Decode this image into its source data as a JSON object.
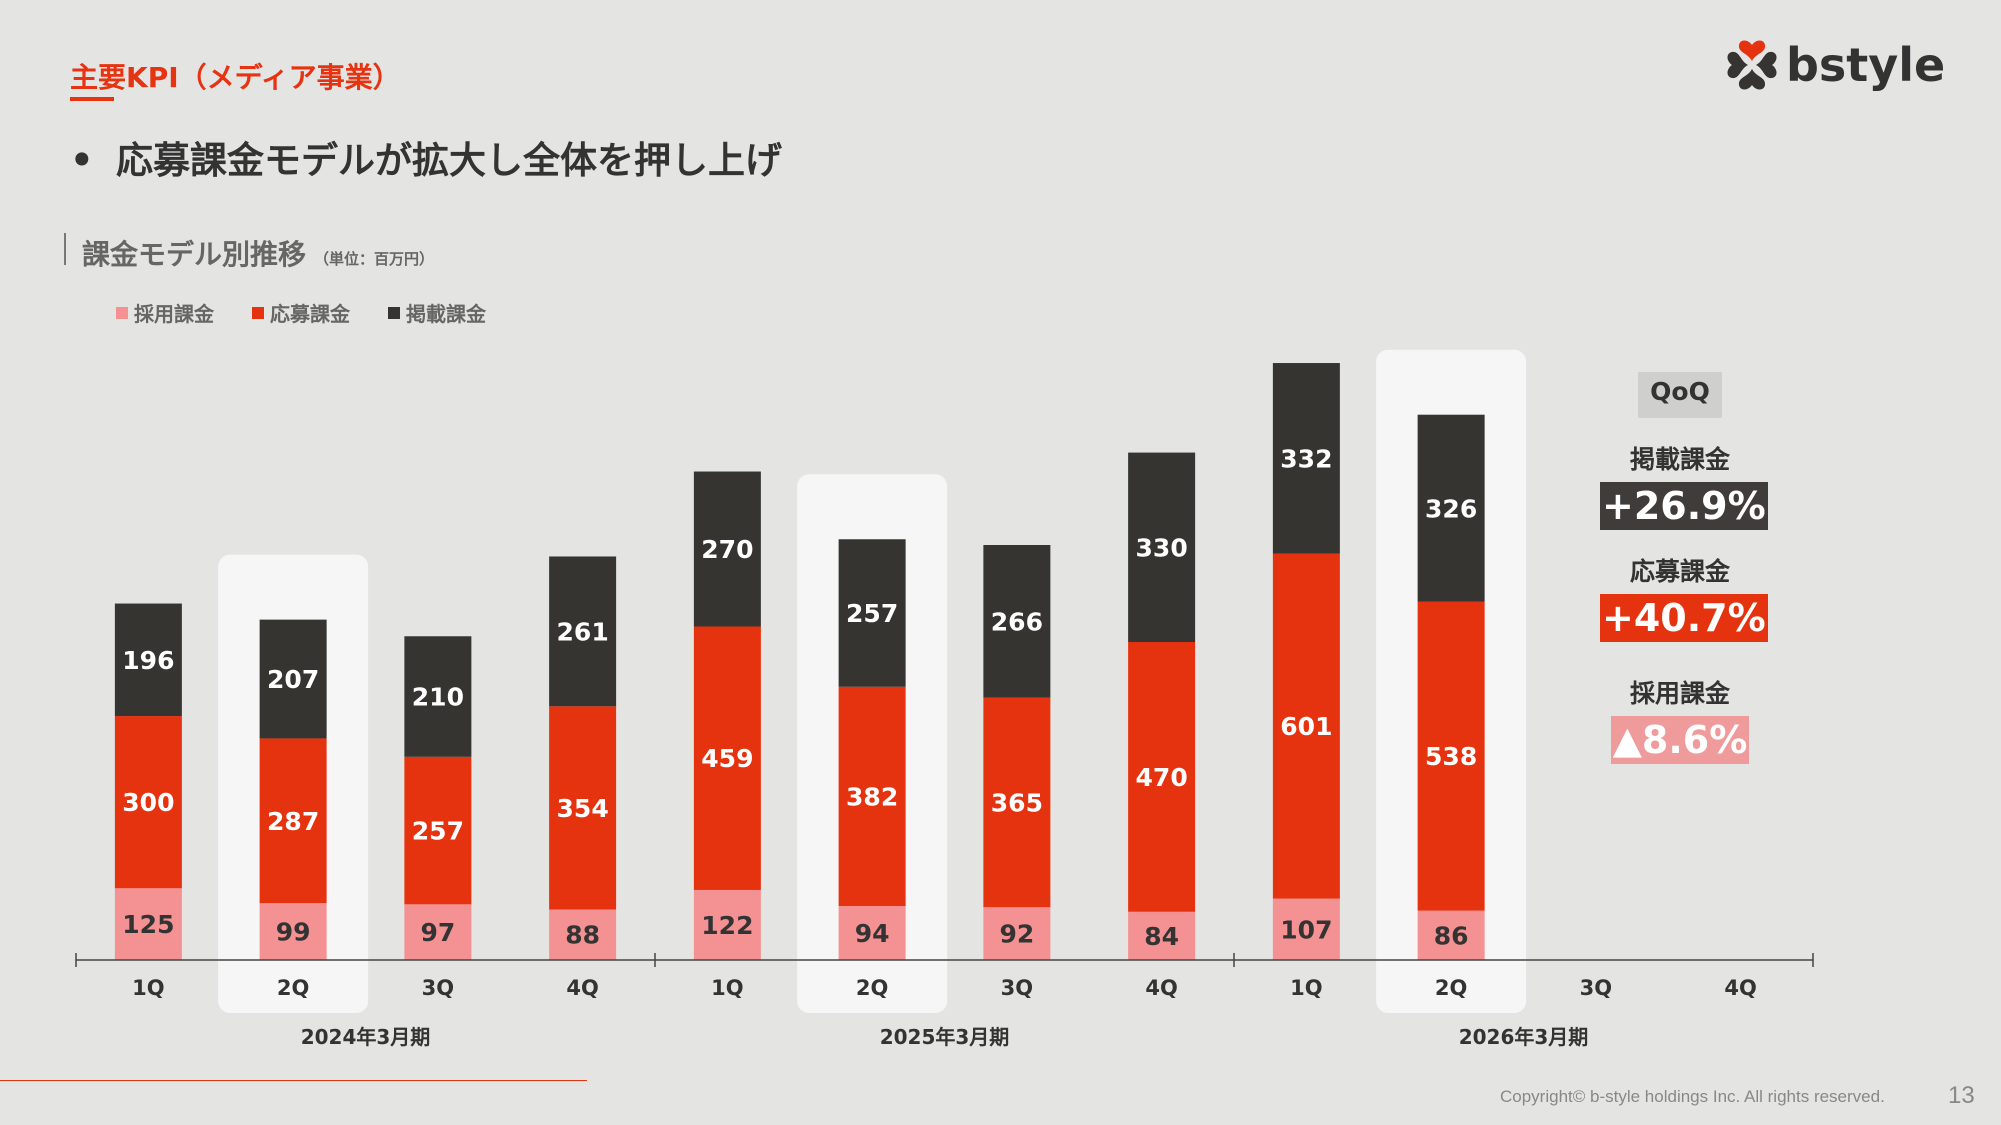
{
  "header": {
    "section_title": "主要KPI（メディア事業）",
    "headline_bullet": "•",
    "headline": "応募課金モデルが拡大し全体を押し上げ",
    "logo_text": "bstyle"
  },
  "chart_heading": {
    "title": "課金モデル別推移",
    "unit": "（単位：百万円）"
  },
  "colors": {
    "saiyo": "#f49192",
    "oubo": "#e6330f",
    "keisai": "#363430",
    "highlight_panel": "#f6f6f6",
    "accent": "#e63312",
    "qoq_saiyo_bg": "#f09b9b",
    "qoq_keisai_bg": "#403c3a"
  },
  "chart_data": {
    "type": "bar",
    "stacked": true,
    "title": "課金モデル別推移",
    "unit": "百万円",
    "categories": [
      "1Q",
      "2Q",
      "3Q",
      "4Q",
      "1Q",
      "2Q",
      "3Q",
      "4Q",
      "1Q",
      "2Q",
      "3Q",
      "4Q"
    ],
    "groups": [
      {
        "label": "2024年3月期",
        "quarters": [
          "1Q",
          "2Q",
          "3Q",
          "4Q"
        ]
      },
      {
        "label": "2025年3月期",
        "quarters": [
          "1Q",
          "2Q",
          "3Q",
          "4Q"
        ]
      },
      {
        "label": "2026年3月期",
        "quarters": [
          "1Q",
          "2Q",
          "3Q",
          "4Q"
        ]
      }
    ],
    "series": [
      {
        "name": "採用課金",
        "color": "#f49192",
        "label_color": "#333333",
        "values": [
          125,
          99,
          97,
          88,
          122,
          94,
          92,
          84,
          107,
          86,
          null,
          null
        ]
      },
      {
        "name": "応募課金",
        "color": "#e6330f",
        "label_color": "#ffffff",
        "values": [
          300,
          287,
          257,
          354,
          459,
          382,
          365,
          470,
          601,
          538,
          null,
          null
        ]
      },
      {
        "name": "掲載課金",
        "color": "#363430",
        "label_color": "#ffffff",
        "values": [
          196,
          207,
          210,
          261,
          270,
          257,
          266,
          330,
          332,
          326,
          null,
          null
        ]
      }
    ],
    "highlighted_categories": [
      1,
      5,
      9
    ],
    "legend_position": "top-left",
    "grid": false,
    "ylim": [
      0,
      1100
    ],
    "xlabel": "",
    "ylabel": ""
  },
  "qoq": {
    "header": "QoQ",
    "items": [
      {
        "label": "掲載課金",
        "value": "+26.9%",
        "color": "#403c3a"
      },
      {
        "label": "応募課金",
        "value": "+40.7%",
        "color": "#e6330f"
      },
      {
        "label": "採用課金",
        "value": "▲8.6%",
        "color": "#f09b9b"
      }
    ]
  },
  "footer": {
    "copyright": "Copyright© b-style holdings Inc. All rights reserved.",
    "page_number": "13"
  }
}
